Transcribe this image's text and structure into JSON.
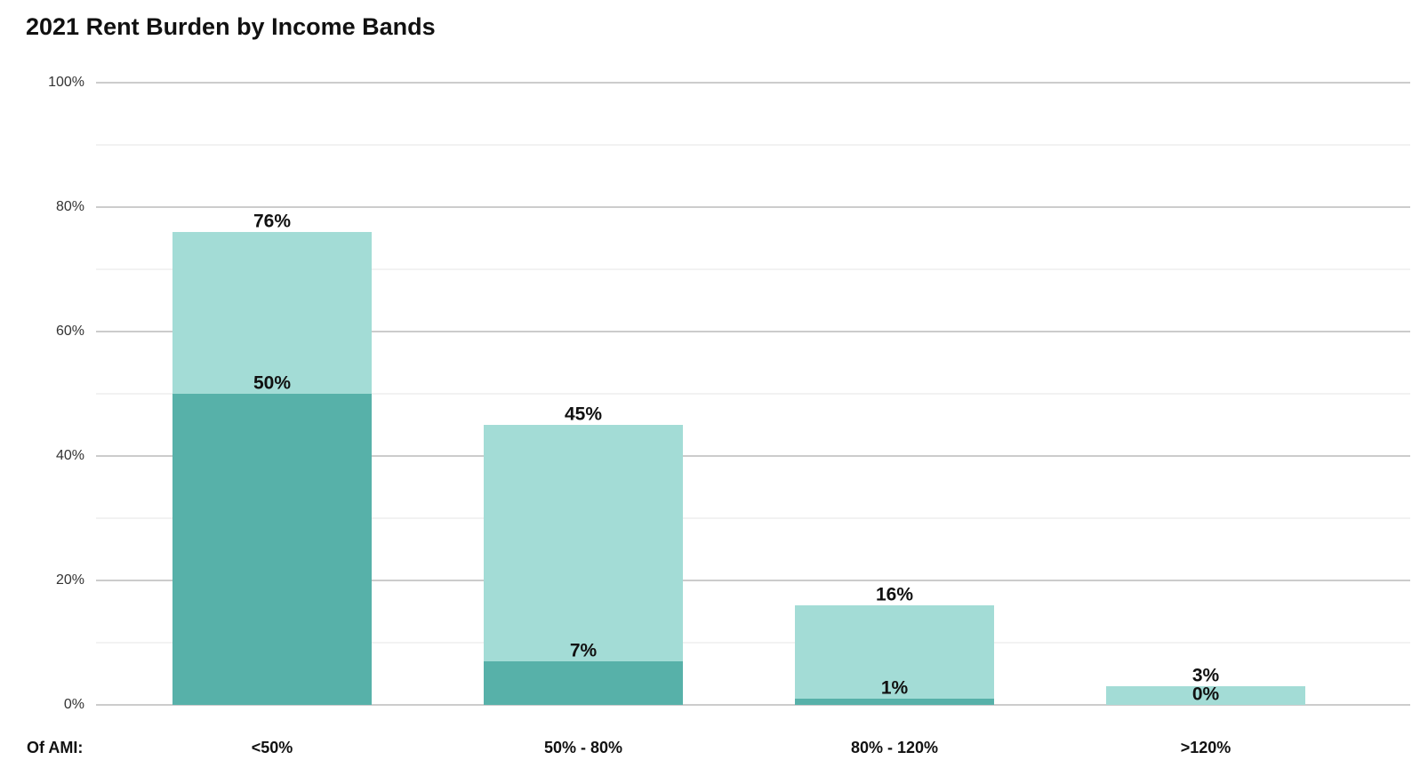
{
  "chart_data": {
    "type": "bar",
    "barmode": "overlay",
    "title": "2021 Rent Burden by Income Bands",
    "x_label": "Of AMI:",
    "categories": [
      "<50%",
      "50% - 80%",
      "80% - 120%",
      ">120%"
    ],
    "series": [
      {
        "color": "#a3dcd6",
        "values": [
          76,
          45,
          16,
          3
        ],
        "value_labels": [
          "76%",
          "45%",
          "16%",
          "3%"
        ]
      },
      {
        "color": "#57b1a9",
        "values": [
          50,
          7,
          1,
          0
        ],
        "value_labels": [
          "50%",
          "7%",
          "1%",
          "0%"
        ]
      }
    ],
    "ylim": [
      0,
      100
    ],
    "yticks": [
      {
        "value": 0,
        "label": "0%"
      },
      {
        "value": 20,
        "label": "20%"
      },
      {
        "value": 40,
        "label": "40%"
      },
      {
        "value": 60,
        "label": "60%"
      },
      {
        "value": 80,
        "label": "80%"
      },
      {
        "value": 100,
        "label": "100%"
      }
    ],
    "minor_yticks": [
      10,
      30,
      50,
      70,
      90
    ],
    "grid": true
  }
}
